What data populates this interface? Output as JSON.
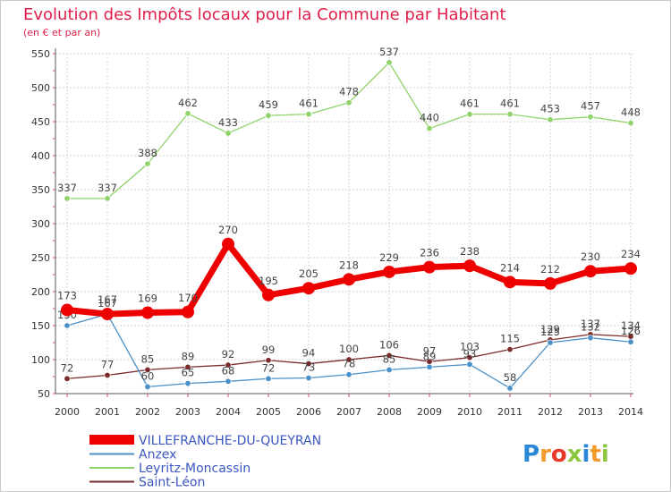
{
  "chart_data": {
    "type": "line",
    "title": "Evolution des Impôts locaux pour la Commune par Habitant",
    "subtitle": "(en € et par an)",
    "ylim": [
      50,
      550
    ],
    "yticks": [
      50,
      100,
      150,
      200,
      250,
      300,
      350,
      400,
      450,
      500,
      550
    ],
    "x": [
      "2000",
      "2001",
      "2002",
      "2003",
      "2004",
      "2005",
      "2006",
      "2007",
      "2008",
      "2009",
      "2010",
      "2011",
      "2012",
      "2013",
      "2014"
    ],
    "series": [
      {
        "name": "VILLEFRANCHE-DU-QUEYRAN",
        "color": "#ee0000",
        "thick": true,
        "values": [
          173,
          167,
          169,
          170,
          270,
          195,
          205,
          218,
          229,
          236,
          238,
          214,
          212,
          230,
          234
        ]
      },
      {
        "name": "Anzex",
        "color": "#4a90c8",
        "thick": false,
        "values": [
          150,
          167,
          60,
          65,
          68,
          72,
          73,
          78,
          85,
          89,
          93,
          58,
          125,
          132,
          126
        ]
      },
      {
        "name": "Leyritz-Moncassin",
        "color": "#8fd36a",
        "thick": false,
        "values": [
          337,
          337,
          388,
          462,
          433,
          459,
          461,
          478,
          537,
          440,
          461,
          461,
          453,
          457,
          448
        ]
      },
      {
        "name": "Saint-Léon",
        "color": "#7a2a2a",
        "thick": false,
        "values": [
          72,
          77,
          85,
          89,
          92,
          99,
          94,
          100,
          106,
          97,
          103,
          115,
          129,
          137,
          134
        ]
      }
    ],
    "legend_position": "bottom-left",
    "grid": true
  },
  "logo": {
    "text": "Proxiti"
  }
}
